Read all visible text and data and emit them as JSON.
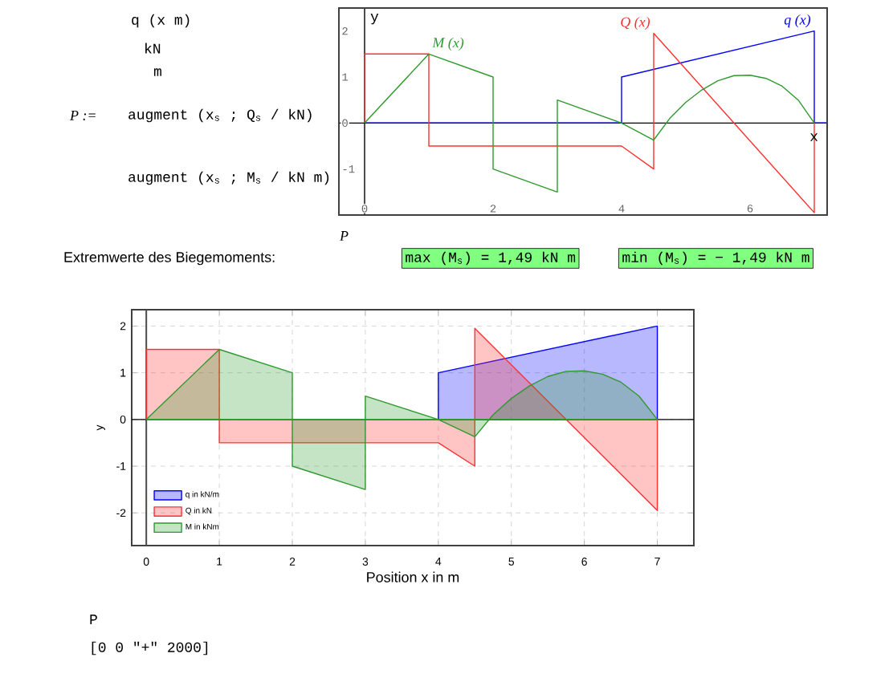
{
  "chart_data": [
    {
      "type": "line",
      "xlabel": "x",
      "ylabel": "y",
      "xlim": [
        -0.4,
        7.2
      ],
      "ylim": [
        -2,
        2.5
      ],
      "xticks": [
        0,
        2,
        4,
        6
      ],
      "yticks": [
        -1,
        0,
        1,
        2
      ],
      "annotations": [
        "P :=",
        "q (x m)",
        "kN",
        "m",
        "augment (x$_{s}$ ; Q$_{s}$ / kN)",
        "augment (x$_{s}$ ; M$_{s}$ / kN m)",
        "P",
        "Extremwerte  des Biegemoments:",
        "max (M$_{s}$) = 1,49 kN m",
        "min (M$_{s}$) = − 1,49 kN m"
      ],
      "series": [
        {
          "name": "q (x)",
          "color": "#0000ff",
          "x": [
            0,
            4,
            4,
            7,
            7,
            7.2
          ],
          "values": [
            0,
            0,
            1,
            2,
            0,
            0
          ]
        },
        {
          "name": "Q (x)",
          "color": "#ff3030",
          "x": [
            0,
            0,
            1,
            1,
            4,
            4.5,
            4.5,
            7,
            7
          ],
          "values": [
            0,
            1.5,
            1.5,
            -0.5,
            -0.5,
            -1,
            1.95,
            -1.95,
            0
          ]
        },
        {
          "name": "M (x)",
          "color": "#2e9a2e",
          "x": [
            0,
            1,
            2,
            2,
            3,
            3,
            4,
            4.5,
            4.75,
            5,
            5.25,
            5.5,
            5.75,
            6,
            6.25,
            6.5,
            6.75,
            7
          ],
          "values": [
            0,
            1.5,
            1,
            -1,
            -1.5,
            0.5,
            0,
            -0.37,
            0.1,
            0.45,
            0.72,
            0.92,
            1.03,
            1.04,
            0.97,
            0.8,
            0.5,
            0
          ]
        }
      ]
    },
    {
      "type": "area",
      "xlabel": "Position x in m",
      "ylabel": "y",
      "xlim": [
        -0.2,
        7.5
      ],
      "ylim": [
        -2.7,
        2.35
      ],
      "xticks": [
        0,
        1,
        2,
        3,
        4,
        5,
        6,
        7
      ],
      "yticks": [
        -2,
        -1,
        0,
        1,
        2
      ],
      "grid": true,
      "legend": "bottom left",
      "annotations": [
        "P",
        "[0 0 \"+\" 2000]"
      ],
      "series": [
        {
          "name": "q in kN/m",
          "color": "#0000ff",
          "x": [
            4,
            4,
            7,
            7
          ],
          "values": [
            0,
            1,
            2,
            0
          ]
        },
        {
          "name": "Q in kN",
          "color": "#ff3030",
          "x": [
            0,
            0,
            1,
            1,
            4,
            4.5,
            4.5,
            7,
            7
          ],
          "values": [
            0,
            1.5,
            1.5,
            -0.5,
            -0.5,
            -1,
            1.95,
            -1.95,
            0
          ]
        },
        {
          "name": "M in kNm",
          "color": "#2e9a2e",
          "x": [
            0,
            1,
            2,
            2,
            3,
            3,
            4,
            4.5,
            4.75,
            5,
            5.25,
            5.5,
            5.75,
            6,
            6.25,
            6.5,
            6.75,
            7
          ],
          "values": [
            0,
            1.5,
            1,
            -1,
            -1.5,
            0.5,
            0,
            -0.37,
            0.1,
            0.45,
            0.72,
            0.92,
            1.03,
            1.04,
            0.97,
            0.8,
            0.5,
            0
          ]
        }
      ]
    }
  ]
}
